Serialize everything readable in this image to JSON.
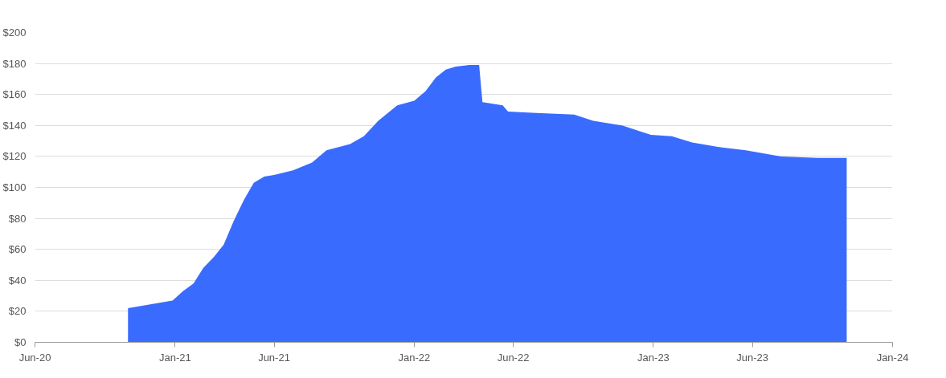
{
  "chart_data": {
    "type": "area",
    "x": [
      "2020-10-21",
      "2020-12-28",
      "2021-01-13",
      "2021-01-29",
      "2021-02-13",
      "2021-03-01",
      "2021-03-16",
      "2021-03-31",
      "2021-04-16",
      "2021-05-01",
      "2021-05-17",
      "2021-06-01",
      "2021-06-30",
      "2021-07-29",
      "2021-08-20",
      "2021-09-25",
      "2021-10-16",
      "2021-11-07",
      "2021-12-06",
      "2022-01-01",
      "2022-01-18",
      "2022-02-03",
      "2022-02-18",
      "2022-03-05",
      "2022-03-26",
      "2022-04-10",
      "2022-04-15",
      "2022-05-16",
      "2022-05-24",
      "2022-07-06",
      "2022-09-02",
      "2022-10-01",
      "2022-11-14",
      "2022-12-28",
      "2023-01-29",
      "2023-03-01",
      "2023-04-11",
      "2023-05-22",
      "2023-07-15",
      "2023-09-11",
      "2023-10-23"
    ],
    "series": [
      {
        "color": "#3a6bff",
        "values": [
          22,
          27,
          33,
          38,
          48,
          55,
          63,
          78,
          92,
          103,
          107,
          108,
          111,
          116,
          124,
          128,
          133,
          143,
          153,
          156,
          162,
          171,
          176,
          178,
          179,
          179,
          155,
          153,
          149,
          148,
          147,
          143,
          140,
          134,
          133,
          129,
          126,
          124,
          120,
          119,
          119
        ]
      }
    ],
    "xlim": [
      "2020-06-01",
      "2024-01-01"
    ],
    "xticks": [
      {
        "value": "2020-06-01",
        "label": "Jun-20"
      },
      {
        "value": "2021-01-01",
        "label": "Jan-21"
      },
      {
        "value": "2021-06-01",
        "label": "Jun-21"
      },
      {
        "value": "2022-01-01",
        "label": "Jan-22"
      },
      {
        "value": "2022-06-01",
        "label": "Jun-22"
      },
      {
        "value": "2023-01-01",
        "label": "Jan-23"
      },
      {
        "value": "2023-06-01",
        "label": "Jun-23"
      },
      {
        "value": "2024-01-01",
        "label": "Jan-24"
      }
    ],
    "ylim": [
      0,
      200
    ],
    "yticks": [
      {
        "value": 0,
        "label": "$0"
      },
      {
        "value": 20,
        "label": "$20"
      },
      {
        "value": 40,
        "label": "$40"
      },
      {
        "value": 60,
        "label": "$60"
      },
      {
        "value": 80,
        "label": "$80"
      },
      {
        "value": 100,
        "label": "$100"
      },
      {
        "value": 120,
        "label": "$120"
      },
      {
        "value": 140,
        "label": "$140"
      },
      {
        "value": 160,
        "label": "$160"
      },
      {
        "value": 180,
        "label": "$180"
      },
      {
        "value": 200,
        "label": "$200"
      }
    ],
    "grid": "y"
  }
}
